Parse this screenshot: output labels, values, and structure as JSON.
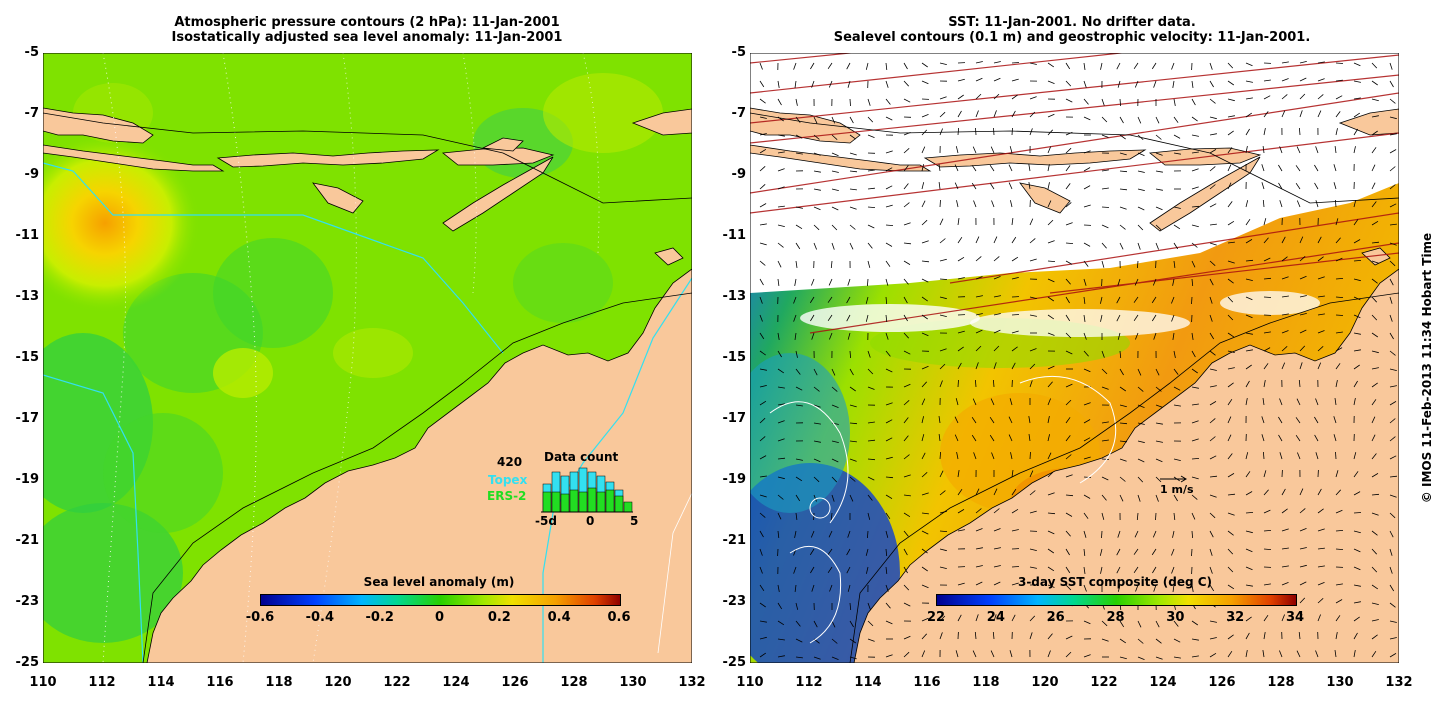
{
  "left_panel": {
    "title_line1": "Atmospheric pressure contours (2 hPa): 11-Jan-2001",
    "title_line2": "Isostatically adjusted sea level anomaly: 11-Jan-2001",
    "colorbar_label": "Sea level anomaly (m)",
    "colorbar_ticks": [
      "-0.6",
      "-0.4",
      "-0.2",
      "0",
      "0.2",
      "0.4",
      "0.6"
    ],
    "data_count": {
      "title": "Data count",
      "max_label": "420",
      "series1": "Topex",
      "series2": "ERS-2",
      "x_ticks": [
        "-5d",
        "0",
        "5"
      ]
    }
  },
  "right_panel": {
    "title_line1": "SST: 11-Jan-2001. No drifter data.",
    "title_line2": "Sealevel contours (0.1 m) and geostrophic velocity: 11-Jan-2001.",
    "colorbar_label": "3-day SST composite (deg C)",
    "colorbar_ticks": [
      "22",
      "24",
      "26",
      "28",
      "30",
      "32",
      "34"
    ],
    "scale_label": "1 m/s"
  },
  "y_ticks": [
    "-5",
    "-7",
    "-9",
    "-11",
    "-13",
    "-15",
    "-17",
    "-19",
    "-21",
    "-23",
    "-25"
  ],
  "x_ticks": [
    "110",
    "112",
    "114",
    "116",
    "118",
    "120",
    "122",
    "124",
    "126",
    "128",
    "130",
    "132"
  ],
  "credit": "© IMOS 11-Feb-2013 11:34 Hobart Time",
  "colors": {
    "land": "#f9c89b",
    "sea_green": "#7fe200",
    "topex": "#33e0f0",
    "ers2": "#22dd22"
  }
}
